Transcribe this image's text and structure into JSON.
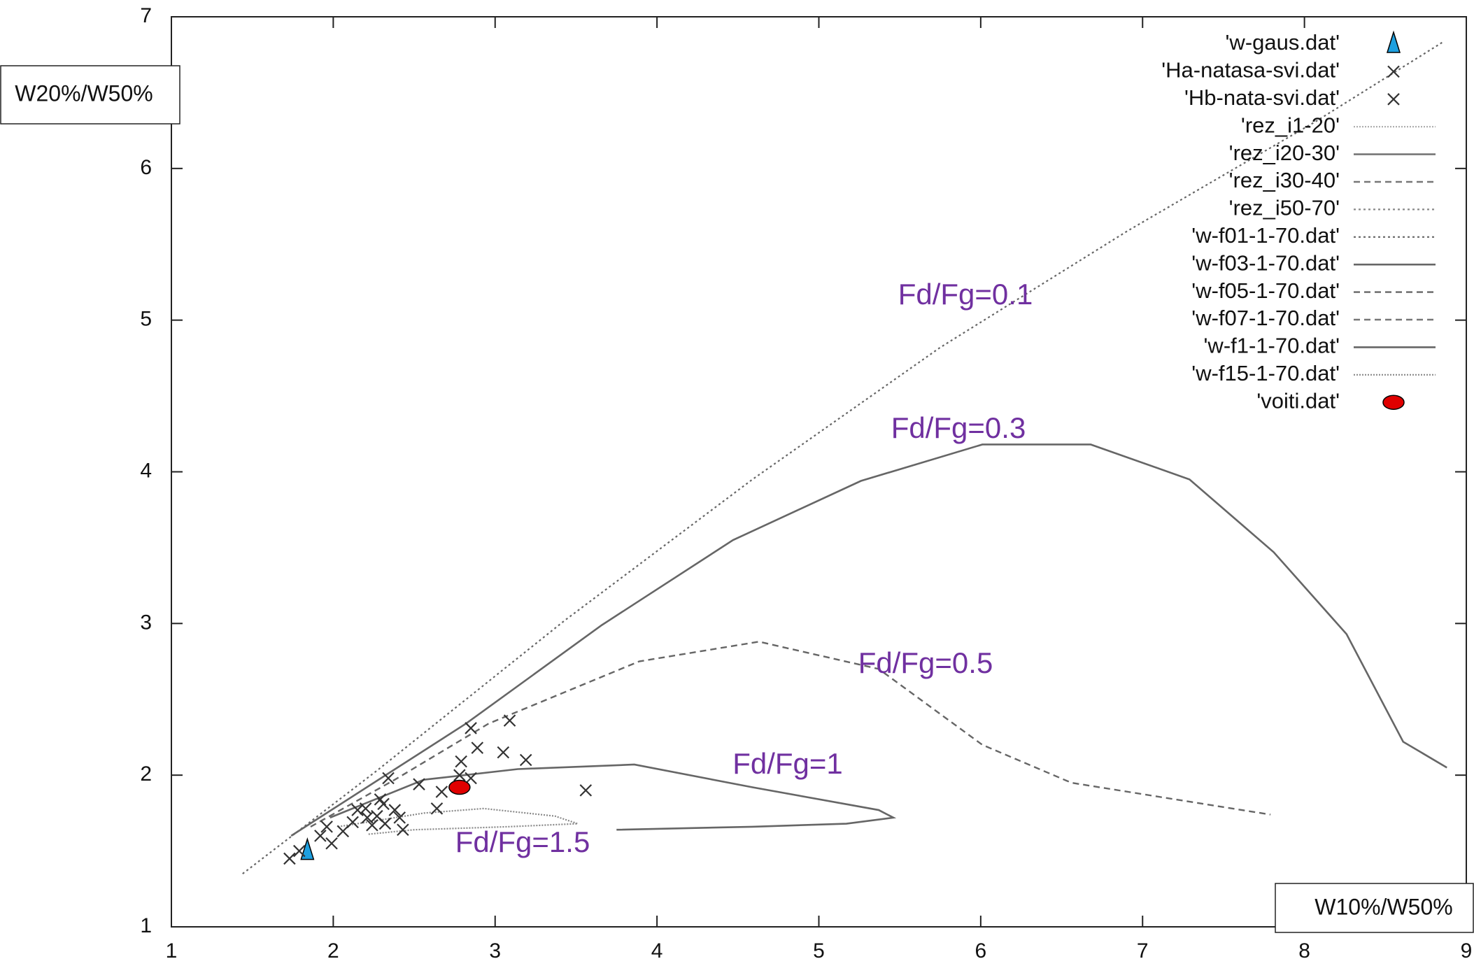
{
  "chart_data": {
    "type": "scatter",
    "xlabel": "W10%/W50%",
    "ylabel": "W20%/W50%",
    "xlim": [
      1,
      9
    ],
    "ylim": [
      1,
      7
    ],
    "xticks": [
      1,
      2,
      3,
      4,
      5,
      6,
      7,
      8,
      9
    ],
    "yticks": [
      1,
      2,
      3,
      4,
      5,
      6,
      7
    ],
    "legend": "upper right",
    "annotations": [
      "Fd/Fg=0.1",
      "Fd/Fg=0.3",
      "Fd/Fg=0.5",
      "Fd/Fg=1",
      "Fd/Fg=1.5"
    ],
    "series": [
      {
        "name": "'w-gaus.dat'",
        "marker": "triangle",
        "color": "#1ea0e0",
        "x": [
          1.84
        ],
        "values": [
          1.5
        ]
      },
      {
        "name": "'Ha-natasa-svi.dat'",
        "marker": "x",
        "color": "#333333",
        "x": [
          1.73,
          1.79,
          1.92,
          1.96,
          1.99,
          2.06,
          2.12,
          2.15,
          2.21,
          2.24,
          2.27,
          2.31,
          2.32,
          2.38,
          2.41,
          2.43,
          2.34
        ],
        "values": [
          1.45,
          1.5,
          1.6,
          1.66,
          1.55,
          1.63,
          1.69,
          1.77,
          1.72,
          1.67,
          1.73,
          1.81,
          1.68,
          1.77,
          1.72,
          1.64,
          1.98
        ]
      },
      {
        "name": "'Hb-nata-svi.dat'",
        "marker": "x",
        "color": "#333333",
        "x": [
          2.53,
          2.64,
          2.67,
          2.78,
          2.85,
          2.89,
          2.85,
          3.05,
          3.09,
          3.19,
          3.56,
          2.79,
          2.29,
          2.2
        ],
        "values": [
          1.94,
          1.78,
          1.89,
          2.0,
          2.31,
          2.18,
          1.98,
          2.15,
          2.36,
          2.1,
          1.9,
          2.09,
          1.84,
          1.78
        ]
      },
      {
        "name": "'rez_i1-20'",
        "line": "fine",
        "color": "#aaaaaa",
        "x": [],
        "values": []
      },
      {
        "name": "'rez_i20-30'",
        "line": "solid",
        "color": "#777777",
        "x": [],
        "values": []
      },
      {
        "name": "'rez_i30-40'",
        "line": "dashed",
        "color": "#777777",
        "x": [],
        "values": []
      },
      {
        "name": "'rez_i50-70'",
        "line": "dotted",
        "color": "#888888",
        "x": [],
        "values": []
      },
      {
        "name": "'w-f01-1-70.dat'",
        "line": "dotted",
        "color": "#666666",
        "x": [
          1.44,
          2.27,
          3.43,
          4.59,
          5.75,
          6.91,
          8.07,
          8.85
        ],
        "values": [
          1.35,
          2.03,
          3.02,
          3.95,
          4.82,
          5.59,
          6.31,
          6.83
        ]
      },
      {
        "name": "'w-f03-1-70.dat'",
        "line": "solid",
        "color": "#666666",
        "x": [
          1.74,
          2.82,
          3.66,
          4.47,
          5.26,
          6.01,
          6.68,
          7.29,
          7.81,
          8.26,
          8.61,
          8.88
        ],
        "values": [
          1.6,
          2.34,
          2.99,
          3.55,
          3.94,
          4.18,
          4.18,
          3.95,
          3.47,
          2.93,
          2.22,
          2.05
        ]
      },
      {
        "name": "'w-f05-1-70.dat'",
        "line": "dashed",
        "color": "#666666",
        "x": [
          1.86,
          2.38,
          2.96,
          3.89,
          4.63,
          5.37,
          6.01,
          6.56,
          7.32,
          7.79
        ],
        "values": [
          1.66,
          1.97,
          2.34,
          2.75,
          2.88,
          2.7,
          2.2,
          1.95,
          1.82,
          1.74
        ]
      },
      {
        "name": "'w-f07-1-70.dat'",
        "line": "dashed",
        "color": "#777777",
        "x": [],
        "values": []
      },
      {
        "name": "'w-f1-1-70.dat'",
        "line": "solidish",
        "color": "#666666",
        "x": [
          1.98,
          2.56,
          3.14,
          3.86,
          4.59,
          5.37,
          5.46,
          5.17,
          4.59,
          3.75
        ],
        "values": [
          1.72,
          1.97,
          2.04,
          2.07,
          1.92,
          1.77,
          1.72,
          1.68,
          1.66,
          1.64
        ]
      },
      {
        "name": "'w-f15-1-70.dat'",
        "line": "fine",
        "color": "#888888",
        "x": [
          2.03,
          2.56,
          2.93,
          3.37,
          3.51,
          3.08,
          2.5,
          2.21
        ],
        "values": [
          1.66,
          1.75,
          1.78,
          1.73,
          1.68,
          1.66,
          1.64,
          1.61
        ]
      },
      {
        "name": "'voiti.dat'",
        "marker": "ellipse",
        "color": "#e00000",
        "x": [
          2.78
        ],
        "values": [
          1.92
        ]
      }
    ]
  }
}
